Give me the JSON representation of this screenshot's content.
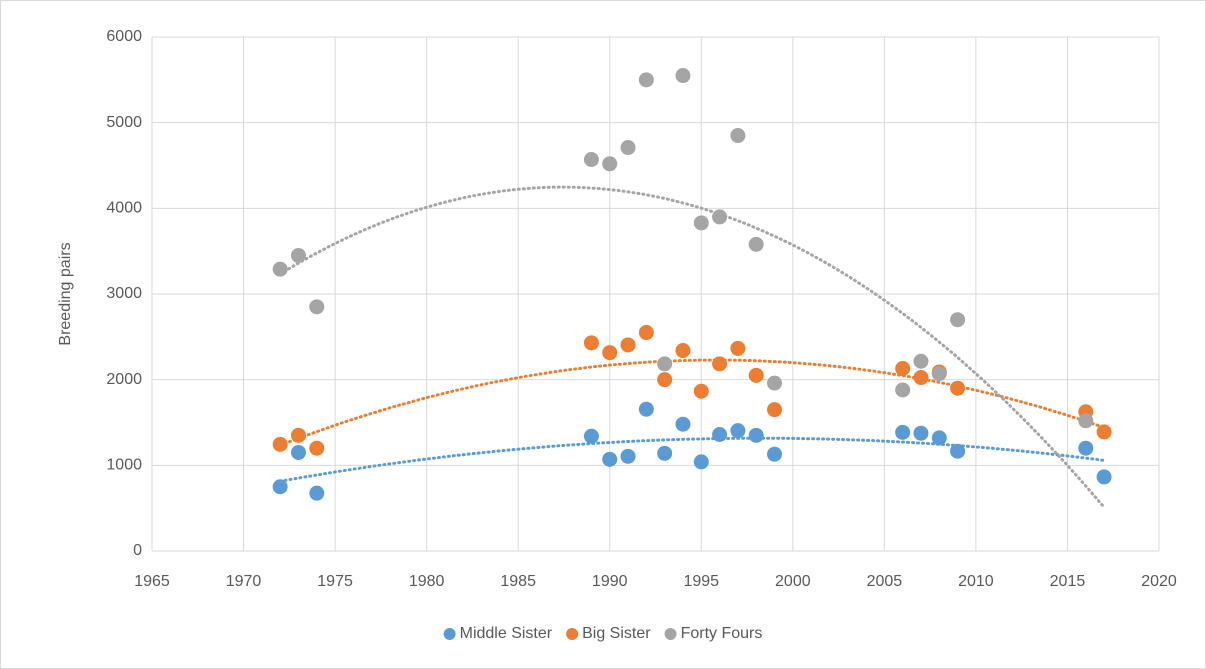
{
  "chart_data": {
    "type": "scatter",
    "y_label": "Breeding pairs",
    "x": [
      1972,
      1973,
      1974,
      1989,
      1990,
      1991,
      1992,
      1993,
      1994,
      1995,
      1996,
      1997,
      1998,
      1999,
      2006,
      2007,
      2008,
      2009,
      2016,
      2017
    ],
    "series": [
      {
        "name": "Middle Sister",
        "color": "#5b9bd5",
        "values": [
          750,
          1150,
          675,
          1340,
          1070,
          1105,
          1655,
          1140,
          1480,
          1040,
          1360,
          1405,
          1350,
          1130,
          1385,
          1375,
          1320,
          1165,
          1200,
          865
        ]
      },
      {
        "name": "Big Sister",
        "color": "#ed7d31",
        "values": [
          1245,
          1350,
          1200,
          2430,
          2315,
          2405,
          2550,
          2000,
          2340,
          1865,
          2185,
          2365,
          2050,
          1650,
          2130,
          2025,
          2090,
          1900,
          1625,
          1390
        ]
      },
      {
        "name": "Forty Fours",
        "color": "#a5a5a5",
        "values": [
          3290,
          3450,
          2850,
          4570,
          4520,
          4710,
          5500,
          2185,
          5550,
          3830,
          3900,
          4850,
          3580,
          1960,
          1880,
          2215,
          2070,
          2700,
          1520,
          null
        ]
      }
    ],
    "trendline": "polynomial-2",
    "xlim": [
      1965,
      2020
    ],
    "xticks": [
      1965,
      1970,
      1975,
      1980,
      1985,
      1990,
      1995,
      2000,
      2005,
      2010,
      2015,
      2020
    ],
    "ylim": [
      0,
      6000
    ],
    "yticks": [
      0,
      1000,
      2000,
      3000,
      4000,
      5000,
      6000
    ],
    "grid": true,
    "legend": "bottom"
  }
}
